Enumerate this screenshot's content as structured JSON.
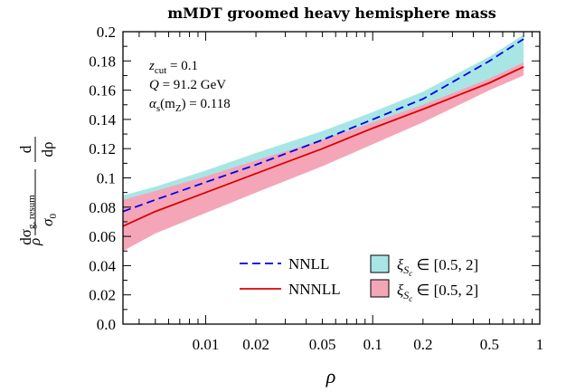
{
  "chart_data": {
    "type": "line",
    "title": "mMDT groomed heavy hemisphere mass",
    "xlabel": "ρ",
    "ylabel": {
      "prefix": "ρ",
      "num_left": "dσ",
      "num_sub": "g, resum",
      "den_left": "σ",
      "den_sub": "0",
      "num_right": "d",
      "den_right": "dρ"
    },
    "xscale": "log",
    "xlim": [
      0.0032,
      1.0
    ],
    "ylim": [
      0.0,
      0.2
    ],
    "xticks": [
      {
        "value": 0.01,
        "label": "0.01"
      },
      {
        "value": 0.02,
        "label": "0.02"
      },
      {
        "value": 0.05,
        "label": "0.05"
      },
      {
        "value": 0.1,
        "label": "0.1"
      },
      {
        "value": 0.2,
        "label": "0.2"
      },
      {
        "value": 0.5,
        "label": "0.5"
      },
      {
        "value": 1.0,
        "label": "1"
      }
    ],
    "yticks": [
      {
        "value": 0.0,
        "label": "0.0"
      },
      {
        "value": 0.02,
        "label": "0.02"
      },
      {
        "value": 0.04,
        "label": "0.04"
      },
      {
        "value": 0.06,
        "label": "0.06"
      },
      {
        "value": 0.08,
        "label": "0.08"
      },
      {
        "value": 0.1,
        "label": "0.1"
      },
      {
        "value": 0.12,
        "label": "0.12"
      },
      {
        "value": 0.14,
        "label": "0.14"
      },
      {
        "value": 0.16,
        "label": "0.16"
      },
      {
        "value": 0.18,
        "label": "0.18"
      },
      {
        "value": 0.2,
        "label": "0.2"
      }
    ],
    "annotations": [
      {
        "lhs": "z",
        "sub": "cut",
        "rhs": " = 0.1"
      },
      {
        "lhs": "Q",
        "sub": "",
        "rhs": " = 91.2 GeV"
      },
      {
        "lhs": "α",
        "sub": "s",
        "rhs": "(m",
        "sub2": "Z",
        "rhs2": ") = 0.118"
      }
    ],
    "legend_position": "bottom-right",
    "series": [
      {
        "name": "NNLL",
        "style": "dashed",
        "color": "#0000ee",
        "x": [
          0.0032,
          0.005,
          0.01,
          0.02,
          0.05,
          0.1,
          0.2,
          0.5,
          0.8
        ],
        "y": [
          0.077,
          0.085,
          0.097,
          0.109,
          0.126,
          0.14,
          0.154,
          0.18,
          0.195
        ],
        "band": {
          "name": "ξ_Sc ∈ [0.5, 2]",
          "color": "#a8e6e6",
          "upper": [
            0.088,
            0.094,
            0.105,
            0.117,
            0.132,
            0.145,
            0.159,
            0.183,
            0.198
          ],
          "lower": [
            0.052,
            0.064,
            0.078,
            0.092,
            0.11,
            0.125,
            0.14,
            0.162,
            0.172
          ]
        }
      },
      {
        "name": "NNNLL",
        "style": "solid",
        "color": "#dd0000",
        "x": [
          0.0032,
          0.005,
          0.01,
          0.02,
          0.05,
          0.1,
          0.2,
          0.5,
          0.8
        ],
        "y": [
          0.067,
          0.077,
          0.09,
          0.103,
          0.12,
          0.134,
          0.147,
          0.165,
          0.176
        ],
        "band": {
          "name": "ξ_Sc ∈ [0.5, 2]",
          "color": "#f4a6b8",
          "upper": [
            0.085,
            0.091,
            0.101,
            0.112,
            0.126,
            0.138,
            0.15,
            0.168,
            0.179
          ],
          "lower": [
            0.05,
            0.062,
            0.076,
            0.09,
            0.108,
            0.123,
            0.138,
            0.16,
            0.17
          ]
        }
      }
    ],
    "legend": [
      {
        "label": "NNLL",
        "kind": "line",
        "series": 0
      },
      {
        "label": "NNNLL",
        "kind": "line",
        "series": 1
      },
      {
        "label_pre": "ξ",
        "label_sub": "S",
        "label_subsub": "c",
        "label_post": " ∈ [0.5, 2]",
        "kind": "box",
        "series": 0
      },
      {
        "label_pre": "ξ",
        "label_sub": "S",
        "label_subsub": "c",
        "label_post": " ∈ [0.5, 2]",
        "kind": "box",
        "series": 1
      }
    ]
  }
}
